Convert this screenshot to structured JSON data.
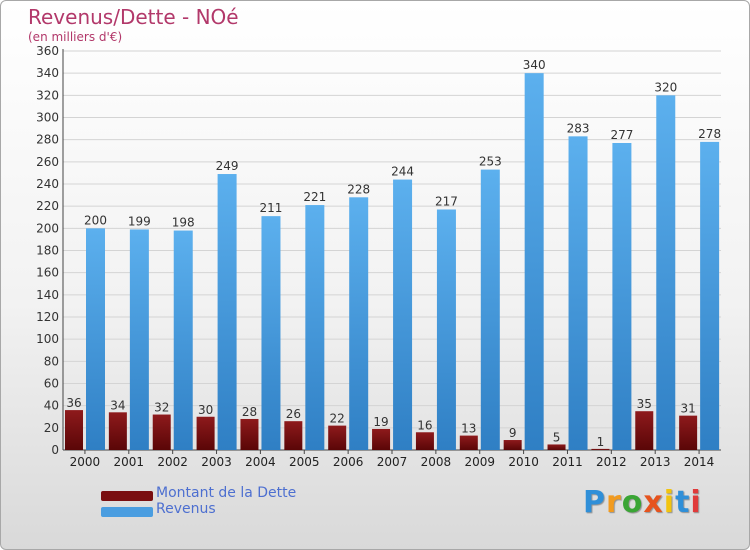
{
  "title": "Revenus/Dette - NOé",
  "subtitle": "(en milliers d'€)",
  "logo": "Proxiti",
  "colors": {
    "debt": "#7a0e10",
    "revenue": "#4a9de0",
    "title": "#b2386a",
    "legend_text": "#4d6fd0"
  },
  "chart_data": {
    "type": "bar",
    "categories": [
      "2000",
      "2001",
      "2002",
      "2003",
      "2004",
      "2005",
      "2006",
      "2007",
      "2008",
      "2009",
      "2010",
      "2011",
      "2012",
      "2013",
      "2014"
    ],
    "series": [
      {
        "name": "Montant de la Dette",
        "values": [
          36,
          34,
          32,
          30,
          28,
          26,
          22,
          19,
          16,
          13,
          9,
          5,
          1,
          35,
          31
        ]
      },
      {
        "name": "Revenus",
        "values": [
          200,
          199,
          198,
          249,
          211,
          221,
          228,
          244,
          217,
          253,
          340,
          283,
          277,
          320,
          278
        ]
      }
    ],
    "ylim": [
      0,
      360
    ],
    "ytick_step": 20,
    "grid": true,
    "legend_position": "bottom-left"
  }
}
